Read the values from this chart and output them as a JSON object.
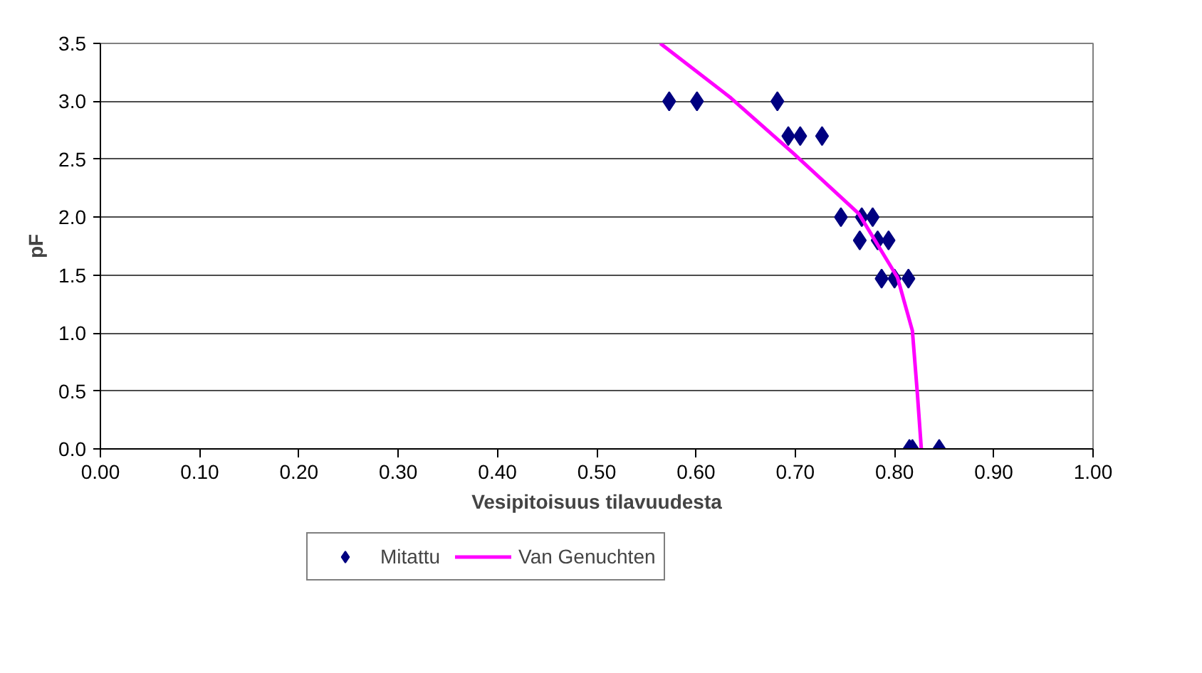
{
  "chart_data": {
    "type": "scatter",
    "xlabel": "Vesipitoisuus tilavuudesta",
    "ylabel": "pF",
    "xlim": [
      0,
      1
    ],
    "xticks": [
      {
        "value": 0,
        "label": "0.00"
      },
      {
        "value": 0.1,
        "label": "0.10"
      },
      {
        "value": 0.2,
        "label": "0.20"
      },
      {
        "value": 0.3,
        "label": "0.30"
      },
      {
        "value": 0.4,
        "label": "0.40"
      },
      {
        "value": 0.5,
        "label": "0.50"
      },
      {
        "value": 0.6,
        "label": "0.60"
      },
      {
        "value": 0.7,
        "label": "0.70"
      },
      {
        "value": 0.8,
        "label": "0.80"
      },
      {
        "value": 0.9,
        "label": "0.90"
      },
      {
        "value": 1,
        "label": "1.00"
      }
    ],
    "ylim": [
      0,
      3.5
    ],
    "yticks": [
      {
        "value": 0,
        "label": "0.0"
      },
      {
        "value": 0.5,
        "label": "0.5"
      },
      {
        "value": 1,
        "label": "1.0"
      },
      {
        "value": 1.5,
        "label": "1.5"
      },
      {
        "value": 2,
        "label": "2.0"
      },
      {
        "value": 2.5,
        "label": "2.5"
      },
      {
        "value": 3,
        "label": "3.0"
      },
      {
        "value": 3.5,
        "label": "3.5"
      }
    ],
    "grid": "y",
    "legend": "bottom",
    "series": [
      {
        "name": "Mitattu",
        "marker": "diamond",
        "color": "#000080",
        "x": [
          0.573,
          0.601,
          0.682,
          0.693,
          0.705,
          0.727,
          0.746,
          0.767,
          0.778,
          0.765,
          0.783,
          0.794,
          0.787,
          0.8,
          0.814,
          0.815,
          0.818,
          0.845
        ],
        "values": [
          3.0,
          3.0,
          3.0,
          2.7,
          2.7,
          2.7,
          2.0,
          2.0,
          2.0,
          1.8,
          1.8,
          1.8,
          1.47,
          1.47,
          1.47,
          0.0,
          0.0,
          0.0
        ]
      },
      {
        "name": "Van Genuchten",
        "type": "line",
        "marker": "none",
        "line_style": "solid",
        "color": "#ff00ff",
        "x": [
          0.564,
          0.635,
          0.697,
          0.764,
          0.803,
          0.818,
          0.823,
          0.827
        ],
        "values": [
          3.5,
          3.03,
          2.56,
          2.03,
          1.48,
          1.02,
          0.48,
          0.0
        ]
      }
    ]
  }
}
